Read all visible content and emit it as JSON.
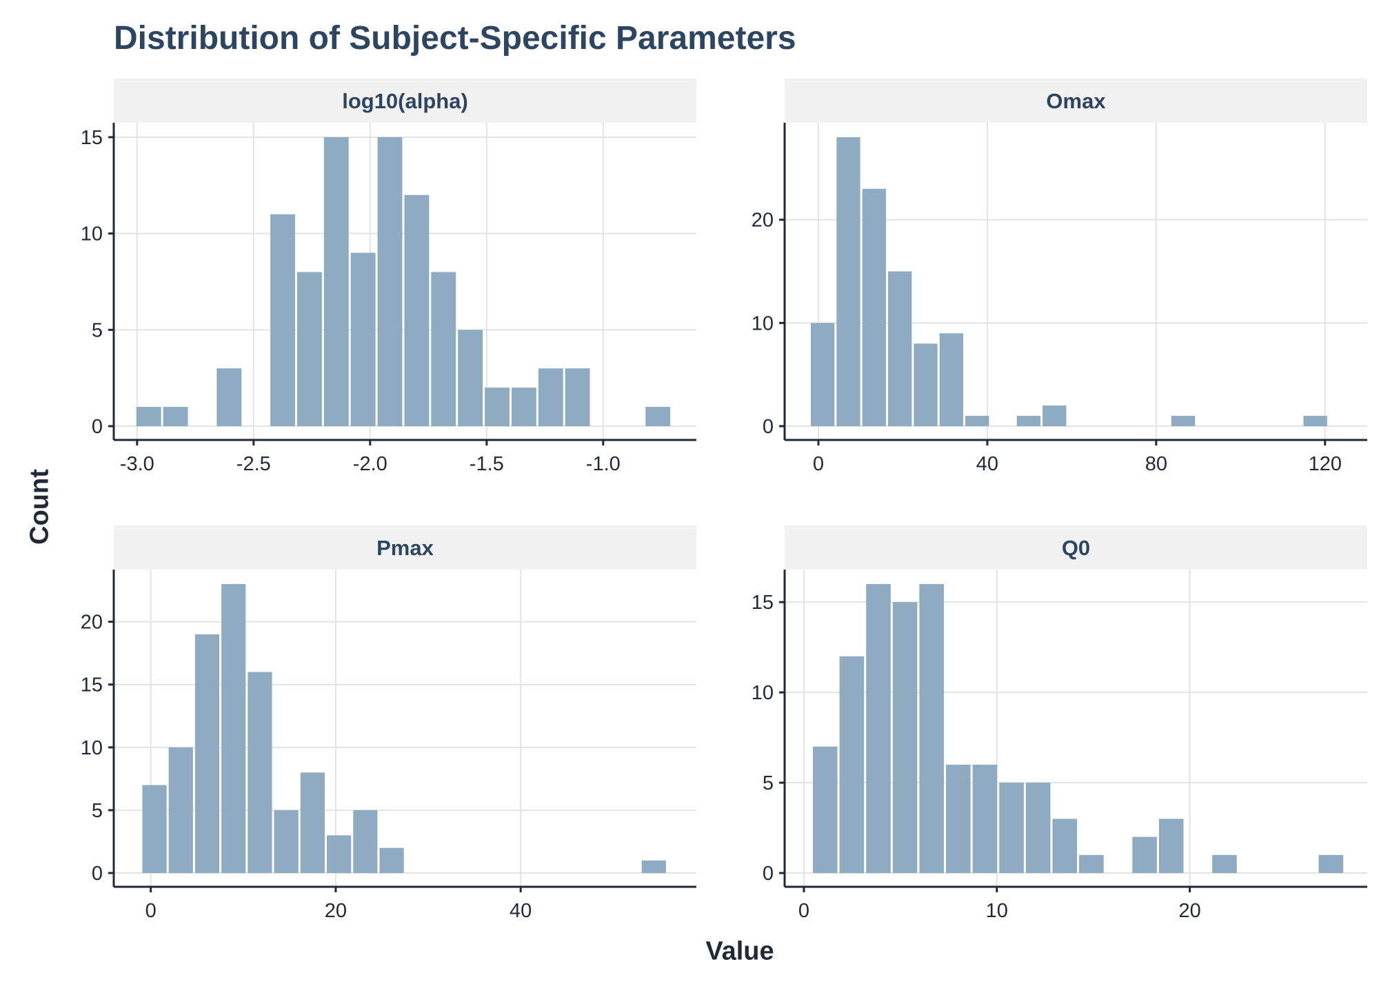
{
  "title": "Distribution of Subject-Specific Parameters",
  "ylabel": "Count",
  "xlabel": "Value",
  "colors": {
    "bar": "#8eabc2",
    "axis": "#1f2a36",
    "grid": "#e3e3e3",
    "strip": "#f1f1f1",
    "title": "#2c4661"
  },
  "chart_data": [
    {
      "type": "bar",
      "panel": "log10(alpha)",
      "title": "log10(alpha)",
      "bin_width": 0.115,
      "x": [
        -2.95,
        -2.835,
        -2.605,
        -2.375,
        -2.26,
        -2.145,
        -2.03,
        -1.915,
        -1.8,
        -1.685,
        -1.57,
        -1.455,
        -1.34,
        -1.225,
        -1.11,
        -0.765
      ],
      "values": [
        1,
        1,
        3,
        11,
        8,
        15,
        9,
        15,
        12,
        8,
        5,
        2,
        2,
        3,
        3,
        1
      ],
      "xlim": [
        -3.1,
        -0.6
      ],
      "ylim": [
        0,
        15.75
      ],
      "xticks": [
        -3.0,
        -2.5,
        -2.0,
        -1.5,
        -1.0
      ],
      "xtick_labels": [
        "-3.0",
        "-2.5",
        "-2.0",
        "-1.5",
        "-1.0"
      ],
      "yticks": [
        0,
        5,
        10,
        15
      ],
      "ytick_labels": [
        "0",
        "5",
        "10",
        "15"
      ],
      "grid": true
    },
    {
      "type": "bar",
      "panel": "Omax",
      "title": "Omax",
      "bin_width": 6.1,
      "x": [
        1.0,
        7.1,
        13.2,
        19.3,
        25.4,
        31.5,
        37.6,
        49.8,
        55.9,
        86.4,
        117.7
      ],
      "values": [
        10,
        28,
        23,
        15,
        8,
        9,
        1,
        1,
        2,
        1,
        1
      ],
      "xlim": [
        -8,
        130
      ],
      "ylim": [
        0,
        29.4
      ],
      "xticks": [
        0,
        40,
        80,
        120
      ],
      "xtick_labels": [
        "0",
        "40",
        "80",
        "120"
      ],
      "yticks": [
        0,
        10,
        20
      ],
      "ytick_labels": [
        "0",
        "10",
        "20"
      ],
      "grid": true
    },
    {
      "type": "bar",
      "panel": "Pmax",
      "title": "Pmax",
      "bin_width": 2.85,
      "x": [
        0.4,
        3.25,
        6.1,
        8.95,
        11.8,
        14.65,
        17.5,
        20.35,
        23.2,
        26.05,
        54.4
      ],
      "values": [
        7,
        10,
        19,
        23,
        16,
        5,
        8,
        3,
        5,
        2,
        1
      ],
      "xlim": [
        -4,
        59
      ],
      "ylim": [
        0,
        24.15
      ],
      "xticks": [
        0,
        20,
        40
      ],
      "xtick_labels": [
        "0",
        "20",
        "40"
      ],
      "yticks": [
        0,
        5,
        10,
        15,
        20
      ],
      "ytick_labels": [
        "0",
        "5",
        "10",
        "15",
        "20"
      ],
      "grid": true
    },
    {
      "type": "bar",
      "panel": "Q0",
      "title": "Q0",
      "bin_width": 1.38,
      "x": [
        1.1,
        2.48,
        3.86,
        5.24,
        6.62,
        8.0,
        9.38,
        10.76,
        12.14,
        13.52,
        14.9,
        17.66,
        19.04,
        21.8,
        27.32
      ],
      "values": [
        7,
        12,
        16,
        15,
        16,
        6,
        6,
        5,
        5,
        3,
        1,
        2,
        3,
        1,
        1
      ],
      "xlim": [
        -1.0,
        29.2
      ],
      "ylim": [
        0,
        16.8
      ],
      "xticks": [
        0,
        10,
        20
      ],
      "xtick_labels": [
        "0",
        "10",
        "20"
      ],
      "yticks": [
        0,
        5,
        10,
        15
      ],
      "ytick_labels": [
        "0",
        "5",
        "10",
        "15"
      ],
      "grid": true
    }
  ]
}
